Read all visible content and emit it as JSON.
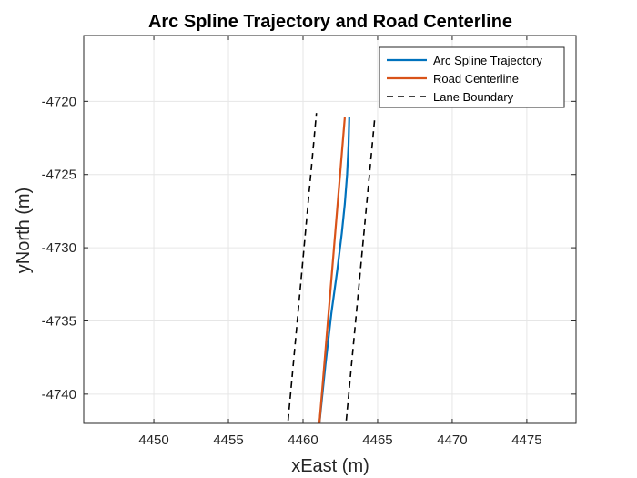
{
  "chart_data": {
    "type": "line",
    "title": "Arc Spline Trajectory and Road Centerline",
    "xlabel": "xEast (m)",
    "ylabel": "yNorth (m)",
    "xlim": [
      4445.3,
      4478.3
    ],
    "ylim": [
      -4742.0,
      -4715.5
    ],
    "xticks": [
      4450,
      4455,
      4460,
      4465,
      4470,
      4475
    ],
    "yticks": [
      -4720,
      -4725,
      -4730,
      -4735,
      -4740
    ],
    "xtick_labels": [
      "4450",
      "4455",
      "4460",
      "4465",
      "4470",
      "4475"
    ],
    "ytick_labels": [
      "-4720",
      "-4725",
      "-4730",
      "-4735",
      "-4740"
    ],
    "grid": true,
    "legend_position": "top-right",
    "series": [
      {
        "name": "Arc Spline Trajectory",
        "color": "#0072BD",
        "style": "solid",
        "x": [
          4461.1,
          4461.5,
          4461.9,
          4462.3,
          4462.6,
          4462.8,
          4462.95,
          4463.05,
          4463.1
        ],
        "y": [
          -4742.0,
          -4738.0,
          -4734.5,
          -4731.5,
          -4729.0,
          -4727.0,
          -4725.0,
          -4723.0,
          -4721.1
        ]
      },
      {
        "name": "Road Centerline",
        "color": "#D95319",
        "style": "solid",
        "x": [
          4461.1,
          4462.8
        ],
        "y": [
          -4742.0,
          -4721.1
        ]
      },
      {
        "name": "Lane Boundary",
        "color": "#000000",
        "style": "dashed",
        "x": [
          4459.0,
          4460.9
        ],
        "y": [
          -4741.8,
          -4720.8
        ]
      },
      {
        "name": "Lane Boundary",
        "color": "#000000",
        "style": "dashed",
        "x": [
          4462.9,
          4464.8
        ],
        "y": [
          -4741.8,
          -4721.2
        ]
      }
    ],
    "legend": [
      "Arc Spline Trajectory",
      "Road Centerline",
      "Lane Boundary"
    ]
  }
}
